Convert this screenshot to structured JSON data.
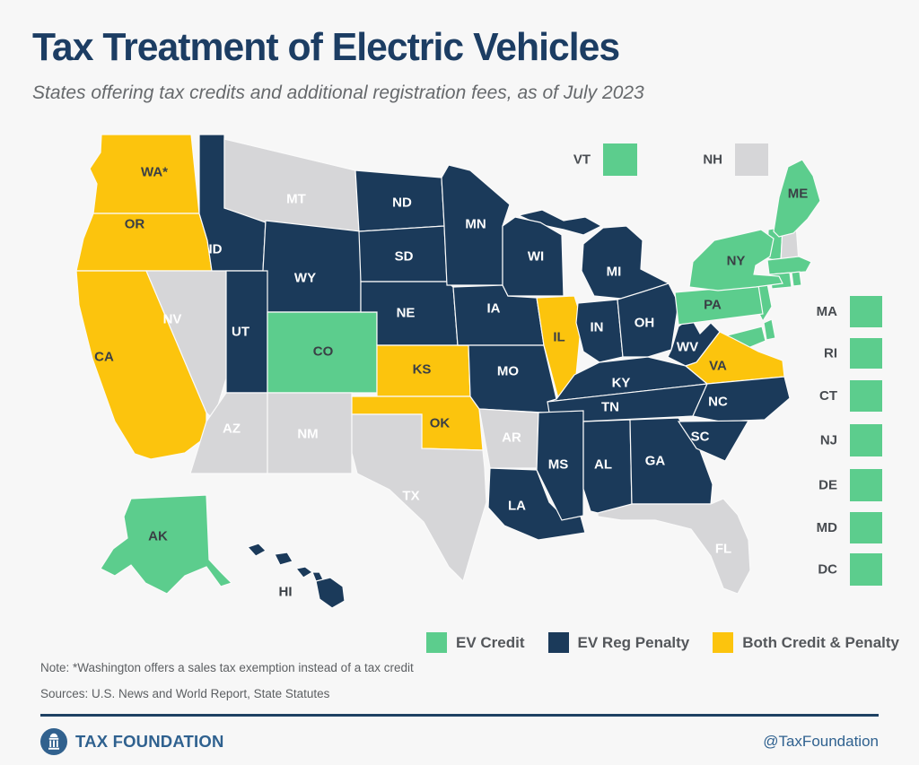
{
  "header": {
    "title": "Tax Treatment of Electric Vehicles",
    "subtitle": "States offering tax credits and additional registration fees, as of July 2023"
  },
  "legend": {
    "items": [
      {
        "key": "credit",
        "label": "EV Credit"
      },
      {
        "key": "penalty",
        "label": "EV Reg Penalty"
      },
      {
        "key": "both",
        "label": "Both Credit & Penalty"
      }
    ],
    "colors": {
      "credit": "#5CCD8D",
      "penalty": "#1B3A5A",
      "both": "#FCC40D",
      "none": "#D6D6D8"
    }
  },
  "map": {
    "states": [
      {
        "id": "WA",
        "label": "WA*",
        "category": "both"
      },
      {
        "id": "OR",
        "label": "OR",
        "category": "both"
      },
      {
        "id": "CA",
        "label": "CA",
        "category": "both"
      },
      {
        "id": "NV",
        "label": "NV",
        "category": "none"
      },
      {
        "id": "ID",
        "label": "ID",
        "category": "penalty"
      },
      {
        "id": "MT",
        "label": "MT",
        "category": "none"
      },
      {
        "id": "WY",
        "label": "WY",
        "category": "penalty"
      },
      {
        "id": "UT",
        "label": "UT",
        "category": "penalty"
      },
      {
        "id": "CO",
        "label": "CO",
        "category": "credit"
      },
      {
        "id": "AZ",
        "label": "AZ",
        "category": "none"
      },
      {
        "id": "NM",
        "label": "NM",
        "category": "none"
      },
      {
        "id": "ND",
        "label": "ND",
        "category": "penalty"
      },
      {
        "id": "SD",
        "label": "SD",
        "category": "penalty"
      },
      {
        "id": "NE",
        "label": "NE",
        "category": "penalty"
      },
      {
        "id": "KS",
        "label": "KS",
        "category": "both"
      },
      {
        "id": "OK",
        "label": "OK",
        "category": "both"
      },
      {
        "id": "TX",
        "label": "TX",
        "category": "none"
      },
      {
        "id": "MN",
        "label": "MN",
        "category": "penalty"
      },
      {
        "id": "IA",
        "label": "IA",
        "category": "penalty"
      },
      {
        "id": "MO",
        "label": "MO",
        "category": "penalty"
      },
      {
        "id": "AR",
        "label": "AR",
        "category": "none"
      },
      {
        "id": "LA",
        "label": "LA",
        "category": "penalty"
      },
      {
        "id": "WI",
        "label": "WI",
        "category": "penalty"
      },
      {
        "id": "IL",
        "label": "IL",
        "category": "both"
      },
      {
        "id": "MI",
        "label": "MI",
        "category": "penalty"
      },
      {
        "id": "IN",
        "label": "IN",
        "category": "penalty"
      },
      {
        "id": "OH",
        "label": "OH",
        "category": "penalty"
      },
      {
        "id": "KY",
        "label": "KY",
        "category": "penalty"
      },
      {
        "id": "TN",
        "label": "TN",
        "category": "penalty"
      },
      {
        "id": "MS",
        "label": "MS",
        "category": "penalty"
      },
      {
        "id": "AL",
        "label": "AL",
        "category": "penalty"
      },
      {
        "id": "GA",
        "label": "GA",
        "category": "penalty"
      },
      {
        "id": "WV",
        "label": "WV",
        "category": "penalty"
      },
      {
        "id": "VA",
        "label": "VA",
        "category": "both"
      },
      {
        "id": "NC",
        "label": "NC",
        "category": "penalty"
      },
      {
        "id": "SC",
        "label": "SC",
        "category": "penalty"
      },
      {
        "id": "FL",
        "label": "FL",
        "category": "none"
      },
      {
        "id": "PA",
        "label": "PA",
        "category": "credit"
      },
      {
        "id": "NY",
        "label": "NY",
        "category": "credit"
      },
      {
        "id": "ME",
        "label": "ME",
        "category": "credit"
      },
      {
        "id": "AK",
        "label": "AK",
        "category": "credit"
      },
      {
        "id": "HI",
        "label": "HI",
        "category": "penalty"
      },
      {
        "id": "VT",
        "label": "VT",
        "category": "credit",
        "display": "square"
      },
      {
        "id": "NH",
        "label": "NH",
        "category": "none",
        "display": "square"
      },
      {
        "id": "MA",
        "label": "MA",
        "category": "credit",
        "display": "square"
      },
      {
        "id": "RI",
        "label": "RI",
        "category": "credit",
        "display": "square"
      },
      {
        "id": "CT",
        "label": "CT",
        "category": "credit",
        "display": "square"
      },
      {
        "id": "NJ",
        "label": "NJ",
        "category": "credit",
        "display": "square"
      },
      {
        "id": "DE",
        "label": "DE",
        "category": "credit",
        "display": "square"
      },
      {
        "id": "MD",
        "label": "MD",
        "category": "credit",
        "display": "square"
      },
      {
        "id": "DC",
        "label": "DC",
        "category": "credit",
        "display": "square"
      }
    ]
  },
  "notes": {
    "note": "Note: *Washington offers a sales tax exemption instead of a tax credit",
    "sources": "Sources: U.S. News and World Report, State Statutes"
  },
  "footer": {
    "brand": "TAX FOUNDATION",
    "handle": "@TaxFoundation"
  }
}
